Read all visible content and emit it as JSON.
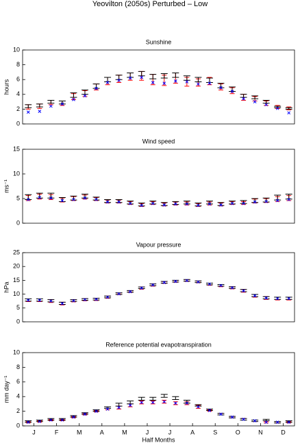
{
  "title": "Yeovilton (2050s) Perturbed – Low",
  "chart_data": [
    {
      "type": "errorbar",
      "title": "Sunshine",
      "y_label": "hours",
      "x": [
        1,
        2,
        3,
        4,
        5,
        6,
        7,
        8,
        9,
        10,
        11,
        12,
        13,
        14,
        15,
        16,
        17,
        18,
        19,
        20,
        21,
        22,
        23,
        24
      ],
      "xlim": [
        0.5,
        24.5
      ],
      "ylim": [
        0,
        10
      ],
      "yticks": [
        0,
        2,
        4,
        6,
        8,
        10
      ],
      "series": [
        {
          "color": "#ff0000",
          "values": [
            2.3,
            2.4,
            2.9,
            2.8,
            3.7,
            4.1,
            5.0,
            5.8,
            6.1,
            6.4,
            6.5,
            6.0,
            5.9,
            6.2,
            5.7,
            5.6,
            5.8,
            5.0,
            4.5,
            3.6,
            3.4,
            2.8,
            2.3,
            2.1
          ],
          "errors": [
            0.3,
            0.3,
            0.3,
            0.3,
            0.4,
            0.4,
            0.4,
            0.5,
            0.5,
            0.5,
            0.6,
            0.7,
            0.7,
            0.7,
            0.6,
            0.5,
            0.5,
            0.4,
            0.4,
            0.4,
            0.3,
            0.3,
            0.2,
            0.2
          ]
        },
        {
          "color": "#000000",
          "values": [
            2.4,
            2.5,
            3.0,
            2.9,
            3.9,
            4.3,
            5.1,
            6.0,
            6.3,
            6.6,
            6.8,
            6.4,
            6.5,
            6.6,
            6.2,
            6.0,
            5.9,
            5.2,
            4.7,
            3.8,
            3.6,
            3.0,
            2.3,
            2.1
          ],
          "errors": [
            0.2,
            0.2,
            0.2,
            0.2,
            0.3,
            0.3,
            0.3,
            0.3,
            0.3,
            0.3,
            0.3,
            0.3,
            0.3,
            0.3,
            0.3,
            0.3,
            0.3,
            0.3,
            0.3,
            0.2,
            0.2,
            0.2,
            0.1,
            0.1
          ]
        },
        {
          "color": "#0000ff",
          "marker": "x",
          "values": [
            1.6,
            1.7,
            2.4,
            2.7,
            3.3,
            3.8,
            4.8,
            5.6,
            5.9,
            6.2,
            6.3,
            5.6,
            5.5,
            5.8,
            5.7,
            5.4,
            5.5,
            4.9,
            4.4,
            3.4,
            3.0,
            2.6,
            2.1,
            1.5
          ]
        }
      ]
    },
    {
      "type": "errorbar",
      "title": "Wind speed",
      "y_label": "ms⁻¹",
      "x": [
        1,
        2,
        3,
        4,
        5,
        6,
        7,
        8,
        9,
        10,
        11,
        12,
        13,
        14,
        15,
        16,
        17,
        18,
        19,
        20,
        21,
        22,
        23,
        24
      ],
      "xlim": [
        0.5,
        24.5
      ],
      "ylim": [
        0,
        15
      ],
      "yticks": [
        0,
        5,
        10,
        15
      ],
      "series": [
        {
          "color": "#ff0000",
          "values": [
            5.1,
            5.4,
            5.3,
            4.7,
            5.0,
            5.3,
            4.9,
            4.4,
            4.4,
            4.1,
            3.7,
            4.1,
            3.8,
            4.0,
            4.0,
            3.7,
            4.0,
            3.8,
            4.1,
            4.1,
            4.5,
            4.6,
            4.9,
            5.1
          ],
          "errors": [
            0.5,
            0.5,
            0.5,
            0.4,
            0.4,
            0.4,
            0.3,
            0.3,
            0.3,
            0.3,
            0.3,
            0.3,
            0.3,
            0.3,
            0.3,
            0.3,
            0.3,
            0.3,
            0.3,
            0.3,
            0.4,
            0.4,
            0.5,
            0.5
          ]
        },
        {
          "color": "#000000",
          "values": [
            5.3,
            5.6,
            5.6,
            4.8,
            5.1,
            5.5,
            5.0,
            4.5,
            4.5,
            4.2,
            3.8,
            4.2,
            3.9,
            4.1,
            4.2,
            3.8,
            4.2,
            3.9,
            4.2,
            4.3,
            4.6,
            4.7,
            5.2,
            5.4
          ],
          "errors": [
            0.5,
            0.5,
            0.5,
            0.4,
            0.4,
            0.4,
            0.3,
            0.3,
            0.3,
            0.3,
            0.3,
            0.3,
            0.3,
            0.3,
            0.3,
            0.3,
            0.3,
            0.3,
            0.3,
            0.3,
            0.4,
            0.4,
            0.5,
            0.5
          ]
        },
        {
          "color": "#0000ff",
          "marker": "x",
          "values": [
            4.8,
            5.2,
            5.1,
            4.6,
            4.8,
            5.1,
            4.8,
            4.3,
            4.3,
            4.0,
            3.6,
            4.0,
            3.7,
            3.9,
            3.9,
            3.6,
            3.9,
            3.7,
            4.0,
            4.0,
            4.3,
            4.4,
            4.6,
            4.8
          ]
        }
      ]
    },
    {
      "type": "errorbar",
      "title": "Vapour pressure",
      "y_label": "hPa",
      "x": [
        1,
        2,
        3,
        4,
        5,
        6,
        7,
        8,
        9,
        10,
        11,
        12,
        13,
        14,
        15,
        16,
        17,
        18,
        19,
        20,
        21,
        22,
        23,
        24
      ],
      "xlim": [
        0.5,
        24.5
      ],
      "ylim": [
        0,
        25
      ],
      "yticks": [
        0,
        5,
        10,
        15,
        20,
        25
      ],
      "series": [
        {
          "color": "#ff0000",
          "values": [
            7.8,
            7.8,
            7.5,
            6.6,
            7.6,
            8.0,
            8.1,
            8.9,
            10.1,
            10.9,
            12.2,
            13.3,
            14.2,
            14.6,
            14.9,
            14.4,
            13.6,
            13.1,
            12.3,
            11.2,
            9.4,
            8.6,
            8.4,
            8.4
          ],
          "errors": [
            0.5,
            0.5,
            0.5,
            0.5,
            0.4,
            0.4,
            0.4,
            0.4,
            0.3,
            0.3,
            0.4,
            0.4,
            0.3,
            0.3,
            0.3,
            0.3,
            0.4,
            0.4,
            0.4,
            0.5,
            0.5,
            0.5,
            0.5,
            0.5
          ]
        },
        {
          "color": "#000000",
          "values": [
            7.9,
            7.9,
            7.6,
            6.7,
            7.7,
            8.1,
            8.2,
            9.0,
            10.2,
            11.0,
            12.3,
            13.4,
            14.3,
            14.7,
            15.0,
            14.5,
            13.7,
            13.2,
            12.4,
            11.3,
            9.5,
            8.7,
            8.5,
            8.5
          ],
          "errors": [
            0.4,
            0.4,
            0.4,
            0.4,
            0.3,
            0.3,
            0.3,
            0.3,
            0.3,
            0.3,
            0.3,
            0.3,
            0.3,
            0.3,
            0.3,
            0.3,
            0.3,
            0.3,
            0.3,
            0.4,
            0.4,
            0.4,
            0.4,
            0.4
          ]
        },
        {
          "color": "#0000ff",
          "marker": "x",
          "values": [
            7.8,
            7.8,
            7.5,
            6.6,
            7.6,
            8.0,
            8.1,
            8.9,
            10.1,
            10.9,
            12.2,
            13.3,
            14.2,
            14.6,
            14.9,
            14.4,
            13.6,
            13.1,
            12.3,
            11.2,
            9.4,
            8.6,
            8.4,
            8.4
          ]
        }
      ]
    },
    {
      "type": "errorbar",
      "title": "Reference potential evapotranspiration",
      "y_label": "mm day⁻¹",
      "x_label": "Half Months",
      "x": [
        1,
        2,
        3,
        4,
        5,
        6,
        7,
        8,
        9,
        10,
        11,
        12,
        13,
        14,
        15,
        16,
        17,
        18,
        19,
        20,
        21,
        22,
        23,
        24
      ],
      "xlim": [
        0.5,
        24.5
      ],
      "ylim": [
        0,
        10
      ],
      "yticks": [
        0,
        2,
        4,
        6,
        8,
        10
      ],
      "xticks": [
        {
          "value": 1.5,
          "label": "J"
        },
        {
          "value": 3.5,
          "label": "F"
        },
        {
          "value": 5.5,
          "label": "M"
        },
        {
          "value": 7.5,
          "label": "A"
        },
        {
          "value": 9.5,
          "label": "M"
        },
        {
          "value": 11.5,
          "label": "J"
        },
        {
          "value": 13.5,
          "label": "J"
        },
        {
          "value": 15.5,
          "label": "A"
        },
        {
          "value": 17.5,
          "label": "S"
        },
        {
          "value": 19.5,
          "label": "O"
        },
        {
          "value": 21.5,
          "label": "N"
        },
        {
          "value": 23.5,
          "label": "D"
        }
      ],
      "series": [
        {
          "color": "#ff0000",
          "values": [
            0.5,
            0.6,
            0.8,
            0.8,
            1.2,
            1.6,
            2.0,
            2.3,
            2.5,
            2.8,
            3.2,
            3.2,
            3.3,
            3.1,
            3.1,
            2.6,
            2.1,
            1.6,
            1.2,
            0.9,
            0.7,
            0.5,
            0.5,
            0.5
          ],
          "errors": [
            0.1,
            0.1,
            0.1,
            0.1,
            0.1,
            0.1,
            0.1,
            0.1,
            0.2,
            0.2,
            0.2,
            0.2,
            0.2,
            0.2,
            0.2,
            0.2,
            0.1,
            0.1,
            0.1,
            0.1,
            0.1,
            0.1,
            0.1,
            0.1
          ]
        },
        {
          "color": "#000000",
          "values": [
            0.6,
            0.7,
            0.9,
            0.9,
            1.3,
            1.7,
            2.1,
            2.5,
            2.9,
            3.2,
            3.7,
            3.7,
            4.1,
            3.8,
            3.3,
            2.8,
            2.2,
            1.6,
            1.2,
            0.9,
            0.7,
            0.8,
            0.5,
            0.6
          ],
          "errors": [
            0.1,
            0.1,
            0.1,
            0.1,
            0.1,
            0.1,
            0.1,
            0.1,
            0.2,
            0.2,
            0.2,
            0.2,
            0.2,
            0.2,
            0.2,
            0.1,
            0.1,
            0.1,
            0.1,
            0.1,
            0.1,
            0.1,
            0.1,
            0.1
          ]
        },
        {
          "color": "#0000ff",
          "marker": "x",
          "values": [
            0.5,
            0.6,
            0.8,
            0.8,
            1.2,
            1.6,
            2.0,
            2.3,
            2.5,
            2.8,
            3.2,
            3.2,
            3.3,
            3.1,
            3.1,
            2.6,
            2.1,
            1.6,
            1.2,
            0.9,
            0.7,
            0.5,
            0.5,
            0.5
          ]
        }
      ]
    }
  ]
}
